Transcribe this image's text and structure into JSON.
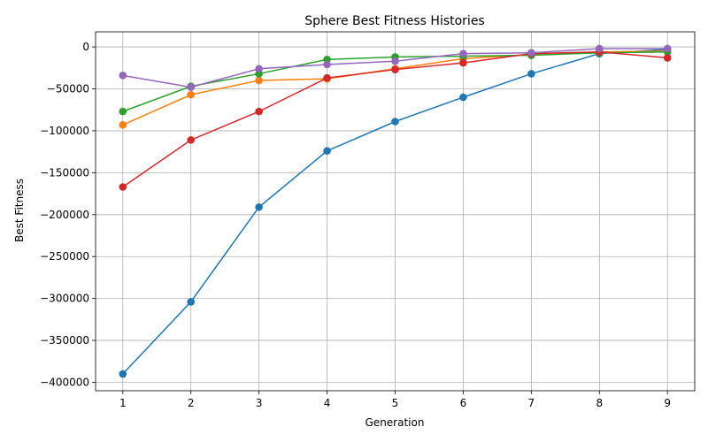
{
  "chart_data": {
    "type": "line",
    "title": "Sphere Best Fitness Histories",
    "xlabel": "Generation",
    "ylabel": "Best Fitness",
    "x": [
      1,
      2,
      3,
      4,
      5,
      6,
      7,
      8,
      9
    ],
    "xlim": [
      0.6,
      9.4
    ],
    "ylim": [
      -410000,
      18000
    ],
    "xticks": [
      1,
      2,
      3,
      4,
      5,
      6,
      7,
      8,
      9
    ],
    "yticks": [
      0,
      -50000,
      -100000,
      -150000,
      -200000,
      -250000,
      -300000,
      -350000,
      -400000
    ],
    "ytick_labels": [
      "0",
      "−50000",
      "−100000",
      "−150000",
      "−200000",
      "−250000",
      "−300000",
      "−350000",
      "−400000"
    ],
    "grid": true,
    "marker": "circle",
    "series": [
      {
        "color": "#1f77b4",
        "values": [
          -390000,
          -304000,
          -191000,
          -124000,
          -89000,
          -60000,
          -32000,
          -8000,
          -3000
        ]
      },
      {
        "color": "#ff7f0e",
        "values": [
          -93000,
          -57000,
          -40000,
          -38000,
          -26000,
          -14000,
          -9000,
          -6000,
          -5000
        ]
      },
      {
        "color": "#2ca02c",
        "values": [
          -77000,
          -47000,
          -32000,
          -15000,
          -12000,
          -11000,
          -10000,
          -7000,
          -6000
        ]
      },
      {
        "color": "#d62728",
        "values": [
          -167000,
          -111000,
          -77000,
          -37000,
          -27000,
          -19000,
          -8000,
          -6000,
          -13000
        ]
      },
      {
        "color": "#9467bd",
        "values": [
          -34000,
          -48000,
          -26000,
          -21000,
          -17000,
          -8000,
          -7000,
          -2000,
          -2000
        ]
      }
    ]
  }
}
